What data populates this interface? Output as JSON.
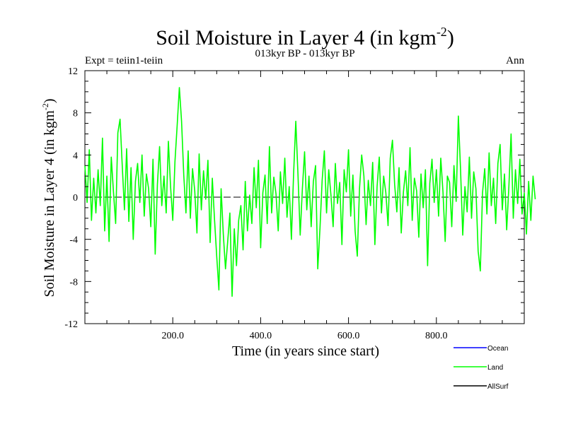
{
  "chart_data": {
    "type": "line",
    "title": "Soil Moisture in Layer 4 (in kgm",
    "title_sup": "-2",
    "title_close": ")",
    "subtitle": "013kyr BP - 013kyr BP",
    "left_label": "Expt = teiin1-teiin",
    "right_label": "Ann",
    "xlabel": "Time (in years since start)",
    "ylabel": "Soil Moisture in Layer 4 (in kgm",
    "ylabel_sup": "-2",
    "ylabel_close": ")",
    "xlim": [
      0,
      1000
    ],
    "ylim": [
      -12,
      12
    ],
    "x_ticks": [
      200,
      400,
      600,
      800
    ],
    "x_tick_labels": [
      "200.0",
      "400.0",
      "600.0",
      "800.0"
    ],
    "y_ticks": [
      -12,
      -8,
      -4,
      0,
      4,
      8,
      12
    ],
    "y_tick_labels": [
      "-12",
      "-8",
      "-4",
      "0",
      "4",
      "8",
      "12"
    ],
    "zero_line": true,
    "legend_position": "bottom-right",
    "legend": [
      {
        "name": "Ocean",
        "color": "#0000ff"
      },
      {
        "name": "Land",
        "color": "#00ff00"
      },
      {
        "name": "AllSurf",
        "color": "#000000"
      }
    ],
    "series": [
      {
        "name": "Land",
        "color": "#00ff00",
        "x_start": 0,
        "x_step": 5,
        "values": [
          3.0,
          -0.5,
          4.5,
          -2.2,
          1.8,
          -1.5,
          2.6,
          -0.8,
          5.6,
          -3.2,
          2.0,
          -4.2,
          3.8,
          0.5,
          -2.5,
          6.1,
          7.4,
          3.0,
          -1.2,
          4.6,
          -2.3,
          2.8,
          -4.0,
          1.5,
          3.2,
          -0.5,
          4.0,
          -1.8,
          2.2,
          0.8,
          -2.8,
          3.6,
          -5.4,
          1.2,
          4.8,
          -0.8,
          2.0,
          -1.5,
          5.3,
          1.0,
          -2.2,
          3.4,
          6.8,
          10.4,
          7.2,
          2.1,
          -1.5,
          4.4,
          -2.0,
          2.7,
          0.6,
          -3.4,
          4.1,
          -1.2,
          2.5,
          -0.2,
          3.5,
          -4.3,
          1.8,
          -2.1,
          -5.6,
          -8.8,
          0.8,
          -3.5,
          -6.8,
          -4.2,
          -1.5,
          -9.4,
          -3.0,
          -6.5,
          -2.2,
          -0.8,
          -5.0,
          1.5,
          -3.2,
          0.2,
          -2.5,
          2.8,
          -1.0,
          3.5,
          -4.8,
          0.4,
          2.1,
          -2.5,
          4.8,
          -1.5,
          1.9,
          0.3,
          -3.2,
          2.4,
          -0.6,
          3.7,
          -1.9,
          1.0,
          -4.0,
          2.2,
          7.2,
          2.1,
          -3.6,
          0.8,
          4.3,
          -1.2,
          2.0,
          -2.8,
          1.5,
          3.0,
          -6.8,
          -3.0,
          1.6,
          4.4,
          -1.5,
          2.6,
          0.2,
          -2.8,
          3.2,
          -0.6,
          1.4,
          -4.5,
          2.6,
          0.5,
          4.5,
          -1.8,
          2.1,
          -3.2,
          -5.6,
          0.8,
          4.0,
          2.0,
          -2.6,
          1.6,
          -0.8,
          3.3,
          -4.5,
          1.0,
          3.8,
          -1.5,
          2.0,
          0.4,
          -2.7,
          3.7,
          5.4,
          1.2,
          -1.4,
          2.8,
          -3.4,
          0.5,
          2.5,
          -0.8,
          4.7,
          -2.2,
          1.8,
          0.6,
          -3.8,
          2.2,
          -1.0,
          2.6,
          -6.5,
          1.3,
          3.6,
          -0.5,
          2.6,
          -1.8,
          3.7,
          0.5,
          -4.2,
          2.0,
          1.4,
          -2.8,
          3.0,
          -0.4,
          7.7,
          2.6,
          -3.6,
          1.0,
          -1.4,
          3.8,
          -2.0,
          2.4,
          0.8,
          -5.1,
          -7.0,
          0.4,
          2.7,
          -1.6,
          4.2,
          -0.8,
          1.8,
          -2.5,
          3.2,
          5.0,
          -1.2,
          2.2,
          -3.1,
          1.0,
          6.0,
          -2.0,
          2.6,
          -0.6,
          3.6,
          -1.6,
          0.4,
          -3.5,
          1.5,
          -2.2,
          2.0,
          -0.2
        ]
      }
    ]
  }
}
